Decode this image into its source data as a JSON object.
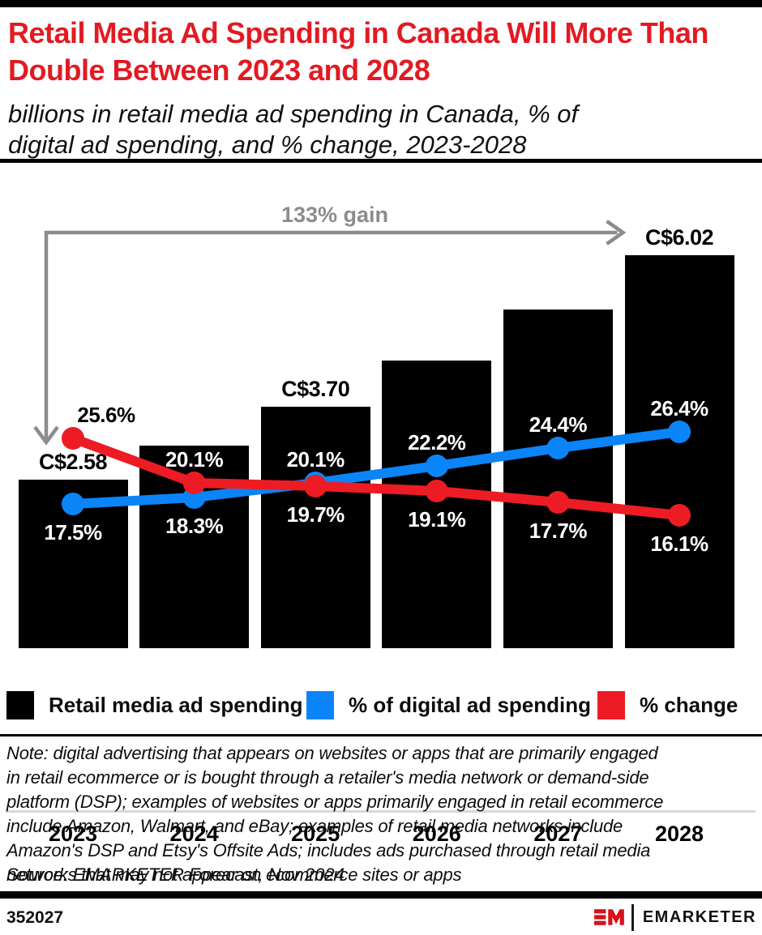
{
  "header": {
    "title": "Retail Media Ad Spending in Canada Will More Than\nDouble Between 2023 and 2028",
    "subtitle": "billions in retail media ad spending in Canada, % of\ndigital ad spending, and % change, 2023-2028"
  },
  "chart_data": {
    "type": "bar",
    "categories": [
      "2023",
      "2024",
      "2025",
      "2026",
      "2027",
      "2028"
    ],
    "series": [
      {
        "name": "Retail media ad spending",
        "type": "bar",
        "unit": "C$ billions",
        "color": "#000000",
        "values": [
          2.58,
          3.1,
          3.7,
          4.41,
          5.19,
          6.02
        ],
        "labels": [
          "C$2.58",
          null,
          "C$3.70",
          null,
          null,
          "C$6.02"
        ]
      },
      {
        "name": "% of digital ad spending",
        "type": "line",
        "color": "#0b84f8",
        "values": [
          17.5,
          18.3,
          20.1,
          22.2,
          24.4,
          26.4
        ],
        "labels": [
          "17.5%",
          "18.3%",
          "20.1%",
          "22.2%",
          "24.4%",
          "26.4%"
        ],
        "label_positions": [
          "below",
          "below",
          "above",
          "above",
          "above",
          "above"
        ],
        "label_colors": [
          "#ffffff",
          "#ffffff",
          "#ffffff",
          "#ffffff",
          "#ffffff",
          "#ffffff"
        ]
      },
      {
        "name": "% change",
        "type": "line",
        "color": "#ed1c24",
        "values": [
          25.6,
          20.1,
          19.7,
          19.1,
          17.7,
          16.1
        ],
        "labels": [
          "25.6%",
          "20.1%",
          "19.7%",
          "19.1%",
          "17.7%",
          "16.1%"
        ],
        "label_positions": [
          "above",
          "above",
          "below",
          "below",
          "below",
          "below"
        ],
        "label_colors": [
          "#000000",
          "#ffffff",
          "#ffffff",
          "#ffffff",
          "#ffffff",
          "#ffffff"
        ]
      }
    ],
    "annotation": {
      "text": "133% gain",
      "from_category": "2023",
      "to_category": "2028",
      "color": "#8c8c8c"
    },
    "ylim_bars": [
      0,
      7.3
    ],
    "ylim_pct": [
      14,
      30
    ],
    "grid": false,
    "legend_position": "bottom"
  },
  "legend": {
    "items": [
      {
        "label": "Retail media ad spending",
        "color": "#000000"
      },
      {
        "label": "% of digital ad spending",
        "color": "#0b84f8"
      },
      {
        "label": "% change",
        "color": "#ed1c24"
      }
    ]
  },
  "note": "Note: digital advertising that appears on websites or apps that are primarily engaged\nin retail ecommerce or is bought through a retailer's media network or demand-side\nplatform (DSP); examples of websites or apps primarily engaged in retail ecommerce\ninclude Amazon, Walmart, and eBay; examples of retail media networks include\nAmazon's DSP and Etsy's Offsite Ads; includes ads purchased through retail media\nnetworks that may not appear on ecommerce sites or apps",
  "source": "Source: EMARKETER Forecast, Nov 2024",
  "footer": {
    "chart_id": "352027",
    "brand": "EMARKETER",
    "logo_color": "#d6121b"
  }
}
